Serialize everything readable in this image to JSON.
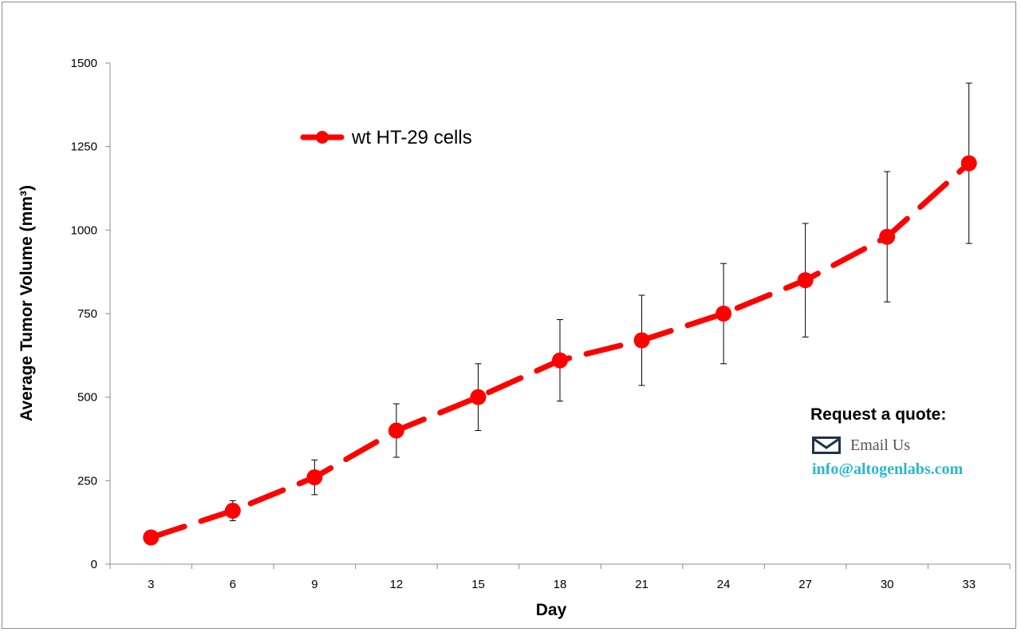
{
  "chart_data": {
    "type": "line",
    "x": [
      3,
      6,
      9,
      12,
      15,
      18,
      21,
      24,
      27,
      30,
      33
    ],
    "xlabel": "Day",
    "ylabel": "Average Tumor Volume (mm³)",
    "ylim": [
      0,
      1500
    ],
    "yticks": [
      0,
      250,
      500,
      750,
      1000,
      1250,
      1500
    ],
    "grid": false,
    "legend_position": "top-left",
    "series": [
      {
        "name": "wt HT-29 cells",
        "color": "#ff0000",
        "line_style": "dashed",
        "marker": "circle",
        "values": [
          80,
          160,
          260,
          400,
          500,
          610,
          670,
          750,
          850,
          980,
          1200
        ],
        "error": [
          5,
          30,
          52,
          80,
          100,
          122,
          135,
          150,
          170,
          195,
          240
        ]
      }
    ]
  },
  "quote_box": {
    "title": "Request a quote:",
    "email_icon": "envelope-icon",
    "email_label": "Email Us",
    "email_address": "info@altogenlabs.com",
    "email_color": "#2ab8c8"
  }
}
